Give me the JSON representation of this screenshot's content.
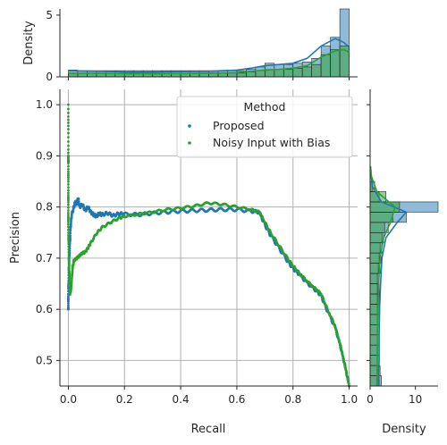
{
  "chart_data": {
    "type": "scatter",
    "subtype": "jointplot",
    "xlabel": "Recall",
    "ylabel": "Precision",
    "xlim": [
      -0.03,
      1.03
    ],
    "ylim": [
      0.45,
      1.03
    ],
    "x_ticks": [
      "0.0",
      "0.2",
      "0.4",
      "0.6",
      "0.8",
      "1.0"
    ],
    "x_tick_values": [
      0.0,
      0.2,
      0.4,
      0.6,
      0.8,
      1.0
    ],
    "y_ticks": [
      "0.5",
      "0.6",
      "0.7",
      "0.8",
      "0.9",
      "1.0"
    ],
    "y_tick_values": [
      0.5,
      0.6,
      0.7,
      0.8,
      0.9,
      1.0
    ],
    "grid": true,
    "legend": {
      "title": "Method",
      "placement": "top-right"
    },
    "series": [
      {
        "name": "Proposed",
        "color": "#1f77b4",
        "points": [
          [
            0.0,
            0.6
          ],
          [
            0.0,
            0.63
          ],
          [
            0.002,
            0.68
          ],
          [
            0.005,
            0.72
          ],
          [
            0.008,
            0.76
          ],
          [
            0.012,
            0.785
          ],
          [
            0.02,
            0.8
          ],
          [
            0.025,
            0.81
          ],
          [
            0.03,
            0.805
          ],
          [
            0.035,
            0.818
          ],
          [
            0.04,
            0.8
          ],
          [
            0.05,
            0.805
          ],
          [
            0.06,
            0.793
          ],
          [
            0.07,
            0.8
          ],
          [
            0.08,
            0.79
          ],
          [
            0.09,
            0.785
          ],
          [
            0.1,
            0.782
          ],
          [
            0.11,
            0.787
          ],
          [
            0.12,
            0.785
          ],
          [
            0.14,
            0.788
          ],
          [
            0.16,
            0.783
          ],
          [
            0.18,
            0.787
          ],
          [
            0.2,
            0.786
          ],
          [
            0.25,
            0.785
          ],
          [
            0.3,
            0.788
          ],
          [
            0.35,
            0.79
          ],
          [
            0.4,
            0.792
          ],
          [
            0.45,
            0.793
          ],
          [
            0.5,
            0.794
          ],
          [
            0.55,
            0.795
          ],
          [
            0.6,
            0.795
          ],
          [
            0.65,
            0.792
          ],
          [
            0.68,
            0.79
          ],
          [
            0.7,
            0.765
          ],
          [
            0.72,
            0.745
          ],
          [
            0.75,
            0.72
          ],
          [
            0.78,
            0.695
          ],
          [
            0.8,
            0.68
          ],
          [
            0.82,
            0.67
          ],
          [
            0.85,
            0.652
          ],
          [
            0.88,
            0.638
          ],
          [
            0.9,
            0.627
          ],
          [
            0.92,
            0.6
          ],
          [
            0.95,
            0.565
          ],
          [
            0.97,
            0.525
          ],
          [
            0.985,
            0.49
          ],
          [
            1.0,
            0.45
          ]
        ]
      },
      {
        "name": "Noisy Input with Bias",
        "color": "#2ca02c",
        "points": [
          [
            0.0,
            1.0
          ],
          [
            0.0,
            0.9
          ],
          [
            0.0,
            0.885
          ],
          [
            0.0,
            0.82
          ],
          [
            0.0,
            0.76
          ],
          [
            0.002,
            0.7
          ],
          [
            0.004,
            0.66
          ],
          [
            0.006,
            0.63
          ],
          [
            0.01,
            0.64
          ],
          [
            0.015,
            0.68
          ],
          [
            0.02,
            0.695
          ],
          [
            0.03,
            0.7
          ],
          [
            0.04,
            0.705
          ],
          [
            0.05,
            0.71
          ],
          [
            0.06,
            0.712
          ],
          [
            0.07,
            0.72
          ],
          [
            0.08,
            0.73
          ],
          [
            0.1,
            0.748
          ],
          [
            0.12,
            0.76
          ],
          [
            0.15,
            0.77
          ],
          [
            0.18,
            0.778
          ],
          [
            0.2,
            0.782
          ],
          [
            0.25,
            0.786
          ],
          [
            0.3,
            0.79
          ],
          [
            0.35,
            0.795
          ],
          [
            0.4,
            0.798
          ],
          [
            0.45,
            0.802
          ],
          [
            0.5,
            0.808
          ],
          [
            0.55,
            0.805
          ],
          [
            0.6,
            0.8
          ],
          [
            0.65,
            0.795
          ],
          [
            0.68,
            0.79
          ],
          [
            0.7,
            0.77
          ],
          [
            0.72,
            0.75
          ],
          [
            0.75,
            0.725
          ],
          [
            0.78,
            0.7
          ],
          [
            0.8,
            0.685
          ],
          [
            0.82,
            0.672
          ],
          [
            0.85,
            0.655
          ],
          [
            0.88,
            0.64
          ],
          [
            0.9,
            0.63
          ],
          [
            0.92,
            0.603
          ],
          [
            0.95,
            0.567
          ],
          [
            0.97,
            0.527
          ],
          [
            0.985,
            0.49
          ],
          [
            1.0,
            0.45
          ]
        ]
      }
    ],
    "marginal_top": {
      "ylabel": "Density",
      "ylim": [
        0,
        5.5
      ],
      "y_ticks": [
        "0",
        "5"
      ],
      "y_tick_values": [
        0,
        5
      ],
      "bin_edges": [
        0.0,
        0.0333,
        0.0667,
        0.1,
        0.1333,
        0.1667,
        0.2,
        0.2333,
        0.2667,
        0.3,
        0.3333,
        0.3667,
        0.4,
        0.4333,
        0.4667,
        0.5,
        0.5333,
        0.5667,
        0.6,
        0.6333,
        0.6667,
        0.7,
        0.7333,
        0.7667,
        0.8,
        0.8333,
        0.8667,
        0.9,
        0.9333,
        0.9667,
        1.0
      ],
      "proposed_density": [
        0.55,
        0.5,
        0.5,
        0.5,
        0.5,
        0.5,
        0.5,
        0.5,
        0.5,
        0.5,
        0.5,
        0.5,
        0.5,
        0.5,
        0.5,
        0.5,
        0.5,
        0.5,
        0.5,
        0.6,
        0.8,
        1.1,
        1.0,
        1.0,
        1.1,
        1.2,
        1.5,
        2.5,
        3.2,
        5.5
      ],
      "noisy_density": [
        0.3,
        0.3,
        0.3,
        0.3,
        0.3,
        0.3,
        0.3,
        0.3,
        0.3,
        0.3,
        0.3,
        0.3,
        0.3,
        0.3,
        0.3,
        0.3,
        0.3,
        0.3,
        0.3,
        0.4,
        0.5,
        0.6,
        0.6,
        0.6,
        0.7,
        0.8,
        1.0,
        1.8,
        2.2,
        2.5
      ],
      "proposed_kde": [
        [
          0.0,
          0.5
        ],
        [
          0.1,
          0.45
        ],
        [
          0.2,
          0.4
        ],
        [
          0.3,
          0.4
        ],
        [
          0.4,
          0.42
        ],
        [
          0.5,
          0.45
        ],
        [
          0.6,
          0.55
        ],
        [
          0.65,
          0.7
        ],
        [
          0.7,
          0.9
        ],
        [
          0.75,
          1.0
        ],
        [
          0.8,
          1.1
        ],
        [
          0.85,
          1.5
        ],
        [
          0.9,
          2.5
        ],
        [
          0.95,
          3.1
        ],
        [
          0.98,
          2.8
        ],
        [
          1.0,
          2.4
        ]
      ],
      "noisy_kde": [
        [
          0.0,
          0.3
        ],
        [
          0.1,
          0.28
        ],
        [
          0.2,
          0.25
        ],
        [
          0.3,
          0.25
        ],
        [
          0.4,
          0.27
        ],
        [
          0.5,
          0.3
        ],
        [
          0.6,
          0.35
        ],
        [
          0.65,
          0.45
        ],
        [
          0.7,
          0.55
        ],
        [
          0.75,
          0.6
        ],
        [
          0.8,
          0.7
        ],
        [
          0.85,
          0.9
        ],
        [
          0.9,
          1.6
        ],
        [
          0.95,
          2.1
        ],
        [
          0.98,
          2.2
        ],
        [
          1.0,
          2.0
        ]
      ]
    },
    "marginal_right": {
      "xlabel": "Density",
      "xlim": [
        0,
        15
      ],
      "x_ticks": [
        "0",
        "10"
      ],
      "x_tick_values": [
        0,
        10
      ],
      "bin_edges": [
        0.45,
        0.47,
        0.49,
        0.51,
        0.53,
        0.55,
        0.57,
        0.59,
        0.61,
        0.63,
        0.65,
        0.67,
        0.69,
        0.71,
        0.73,
        0.75,
        0.77,
        0.79,
        0.81,
        0.83,
        0.85
      ],
      "proposed_density": [
        2.5,
        2.2,
        2.0,
        2.0,
        2.0,
        2.0,
        2.0,
        2.0,
        2.0,
        2.0,
        2.0,
        2.2,
        2.4,
        2.6,
        3.0,
        4.0,
        8.0,
        15.0,
        2.0,
        0.5
      ],
      "noisy_density": [
        2.0,
        1.8,
        1.6,
        1.6,
        1.6,
        1.6,
        1.6,
        1.6,
        1.6,
        1.6,
        1.6,
        1.8,
        2.0,
        2.2,
        2.6,
        3.2,
        5.0,
        6.5,
        3.5,
        1.0
      ],
      "proposed_kde": [
        [
          0.45,
          1.8
        ],
        [
          0.5,
          2.0
        ],
        [
          0.55,
          2.0
        ],
        [
          0.6,
          2.1
        ],
        [
          0.65,
          2.3
        ],
        [
          0.7,
          2.6
        ],
        [
          0.74,
          3.5
        ],
        [
          0.77,
          6.0
        ],
        [
          0.79,
          8.0
        ],
        [
          0.81,
          2.5
        ],
        [
          0.84,
          0.5
        ],
        [
          0.87,
          0.1
        ]
      ],
      "noisy_kde": [
        [
          0.45,
          1.5
        ],
        [
          0.5,
          1.6
        ],
        [
          0.55,
          1.6
        ],
        [
          0.6,
          1.7
        ],
        [
          0.65,
          1.9
        ],
        [
          0.7,
          2.2
        ],
        [
          0.74,
          3.0
        ],
        [
          0.77,
          4.5
        ],
        [
          0.8,
          5.5
        ],
        [
          0.83,
          1.5
        ],
        [
          0.86,
          0.3
        ],
        [
          0.88,
          0.1
        ]
      ]
    }
  }
}
